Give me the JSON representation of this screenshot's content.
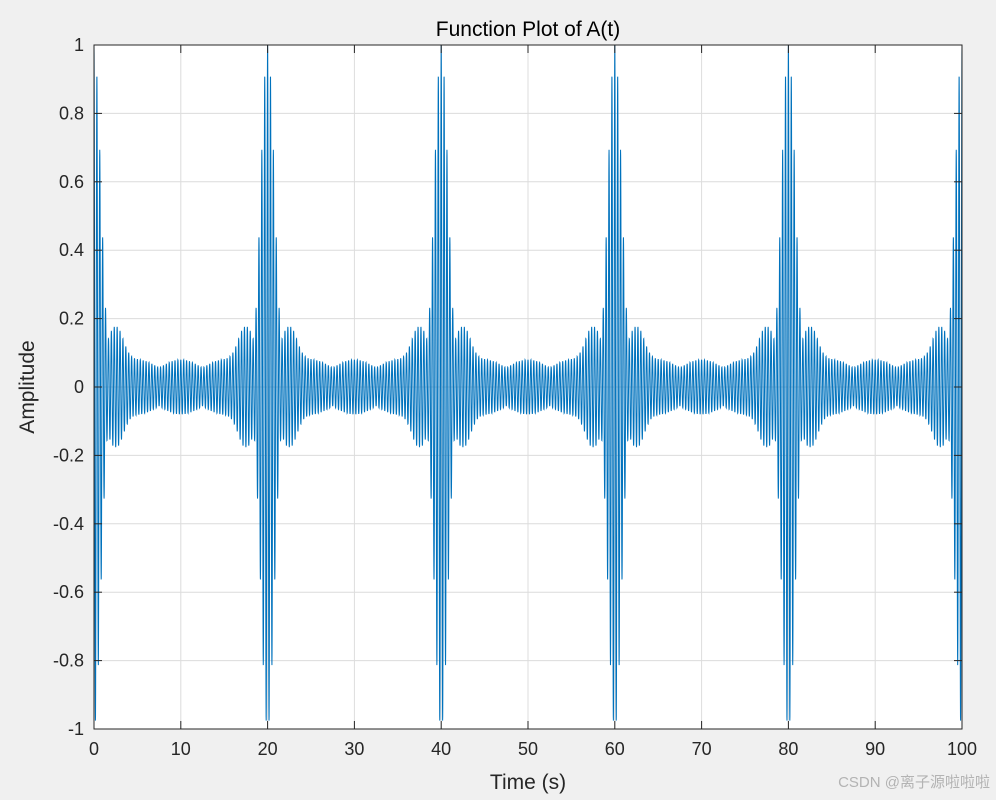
{
  "chart_data": {
    "type": "line",
    "title": "Function Plot of A(t)",
    "xlabel": "Time (s)",
    "ylabel": "Amplitude",
    "xlim": [
      0,
      100
    ],
    "ylim": [
      -1,
      1
    ],
    "xticks": [
      0,
      10,
      20,
      30,
      40,
      50,
      60,
      70,
      80,
      90,
      100
    ],
    "yticks": [
      -1,
      -0.8,
      -0.6,
      -0.4,
      -0.2,
      0,
      0.2,
      0.4,
      0.6,
      0.8,
      1
    ],
    "xtick_labels": [
      "0",
      "10",
      "20",
      "30",
      "40",
      "50",
      "60",
      "70",
      "80",
      "90",
      "100"
    ],
    "ytick_labels": [
      "-1",
      "-0.8",
      "-0.6",
      "-0.4",
      "-0.2",
      "0",
      "0.2",
      "0.4",
      "0.6",
      "0.8",
      "1"
    ],
    "grid": true,
    "series": [
      {
        "color": "#0072bd",
        "description_of_shape": "",
        "peak_times": [
          0,
          20,
          40,
          60,
          80,
          100
        ],
        "peak_amplitude": 1,
        "baseline_amplitude": 0.08,
        "secondary_lobe_amplitude": 0.2
      }
    ]
  },
  "watermark": "CSDN @离子源啦啦啦"
}
